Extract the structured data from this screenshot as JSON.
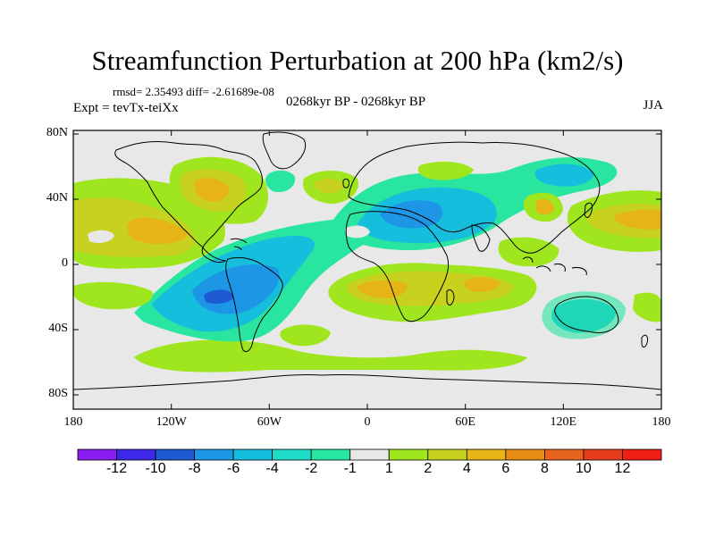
{
  "title": "Streamfunction Perturbation at 200 hPa (km2/s)",
  "stats": "rmsd= 2.35493 diff= -2.61689e-08",
  "expt": "Expt = tevTx-teiXx",
  "period": "0268kyr BP - 0268kyr BP",
  "season": "JJA",
  "y_ticks": [
    "80N",
    "40N",
    "0",
    "40S",
    "80S"
  ],
  "x_ticks": [
    "180",
    "120W",
    "60W",
    "0",
    "60E",
    "120E",
    "180"
  ],
  "colorbar": {
    "labels": [
      "-12",
      "-10",
      "-8",
      "-6",
      "-4",
      "-2",
      "-1",
      "1",
      "2",
      "4",
      "6",
      "8",
      "10",
      "12"
    ],
    "colors": [
      "#8a1ef0",
      "#3c28e6",
      "#1e5ad2",
      "#1e96e6",
      "#14bedc",
      "#1edcc8",
      "#28e6a0",
      "#e8e8e8",
      "#a0e61e",
      "#c8d21e",
      "#e6b414",
      "#e68c14",
      "#e6641e",
      "#e63c1e",
      "#f01e14"
    ]
  },
  "colors": {
    "neutral": "#e8e8e8",
    "coast": "#000000"
  }
}
